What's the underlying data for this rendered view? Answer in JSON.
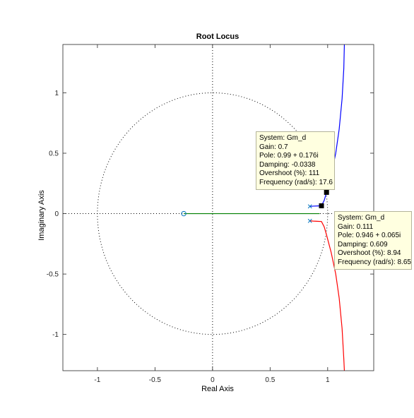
{
  "chart_data": {
    "type": "line",
    "title": "Root Locus",
    "xlabel": "Real Axis",
    "ylabel": "Imaginary Axis",
    "xlim": [
      -1.3,
      1.4
    ],
    "ylim": [
      -1.3,
      1.4
    ],
    "x_ticks": [
      -1,
      -0.5,
      0,
      0.5,
      1
    ],
    "x_tick_labels": [
      "-1",
      "-0.5",
      "0",
      "0.5",
      "1"
    ],
    "y_ticks": [
      -1,
      -0.5,
      0,
      0.5,
      1
    ],
    "y_tick_labels": [
      "-1",
      "-0.5",
      "0",
      "0.5",
      "1"
    ],
    "grid": false,
    "unit_circle": true,
    "colors": {
      "branch_1": "#0000ff",
      "branch_2": "#ff0000",
      "branch_3": "#008000",
      "poles_zeros": "#0072bd",
      "datatip_bg": "#ffffe0"
    },
    "poles": [
      {
        "re": 0.846,
        "im": 0.06
      },
      {
        "re": 0.846,
        "im": -0.06
      }
    ],
    "zeros": [
      {
        "re": -0.25,
        "im": 0
      }
    ],
    "branches": [
      {
        "color": "#0000ff",
        "points": [
          [
            0.846,
            0.06
          ],
          [
            0.875,
            0.062
          ],
          [
            0.92,
            0.064
          ],
          [
            0.946,
            0.065
          ],
          [
            0.97,
            0.11
          ],
          [
            0.99,
            0.176
          ],
          [
            1.03,
            0.32
          ],
          [
            1.07,
            0.5
          ],
          [
            1.1,
            0.7
          ],
          [
            1.125,
            0.95
          ],
          [
            1.14,
            1.2
          ],
          [
            1.145,
            1.4
          ]
        ]
      },
      {
        "color": "#ff0000",
        "points": [
          [
            0.846,
            -0.06
          ],
          [
            0.875,
            -0.062
          ],
          [
            0.92,
            -0.064
          ],
          [
            0.946,
            -0.065
          ],
          [
            0.97,
            -0.11
          ],
          [
            0.99,
            -0.176
          ],
          [
            1.03,
            -0.32
          ],
          [
            1.07,
            -0.5
          ],
          [
            1.1,
            -0.7
          ],
          [
            1.125,
            -0.95
          ],
          [
            1.14,
            -1.2
          ],
          [
            1.145,
            -1.3
          ]
        ]
      },
      {
        "color": "#008000",
        "points": [
          [
            -0.25,
            0
          ],
          [
            0.93,
            0
          ]
        ]
      }
    ],
    "selected_points": [
      {
        "re": 0.99,
        "im": 0.176
      },
      {
        "re": 0.946,
        "im": 0.065
      }
    ],
    "datatips": [
      {
        "anchor": "upper",
        "lines": [
          "System: Gm_d",
          "Gain: 0.7",
          "Pole: 0.99 + 0.176i",
          "Damping: -0.0338",
          "Overshoot (%): 111",
          "Frequency (rad/s): 17.6"
        ]
      },
      {
        "anchor": "lower",
        "lines": [
          "System: Gm_d",
          "Gain: 0.111",
          "Pole: 0.946 + 0.065i",
          "Damping: 0.609",
          "Overshoot (%): 8.94",
          "Frequency (rad/s): 8.65"
        ]
      }
    ]
  }
}
